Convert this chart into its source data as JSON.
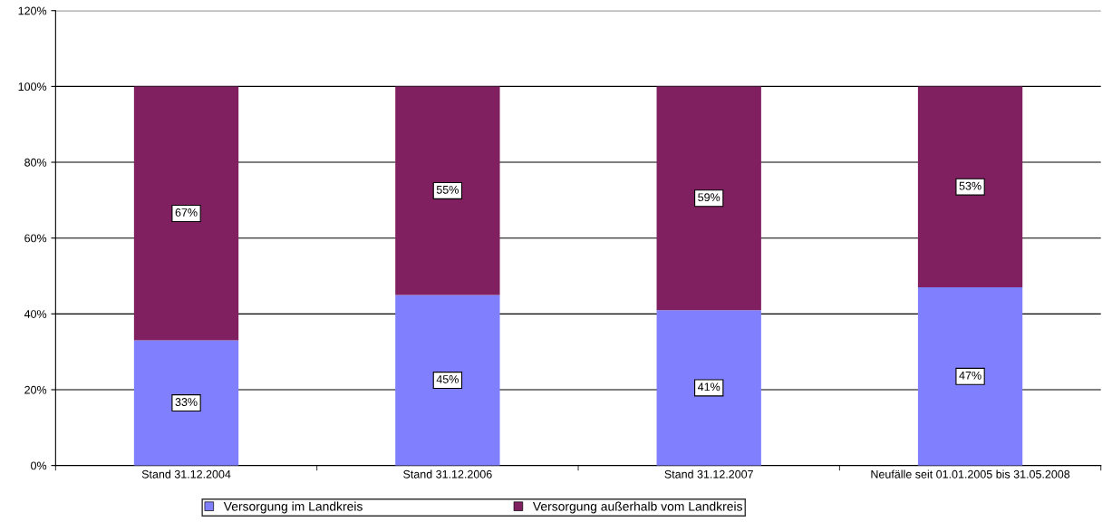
{
  "chart_data": {
    "type": "bar",
    "stacked": true,
    "categories": [
      "Stand 31.12.2004",
      "Stand 31.12.2006",
      "Stand 31.12.2007",
      "Neufälle seit 01.01.2005 bis 31.05.2008"
    ],
    "series": [
      {
        "name": "Versorgung im Landkreis",
        "color": "#8080ff",
        "values": [
          33,
          45,
          41,
          47
        ],
        "value_labels": [
          "33%",
          "45%",
          "41%",
          "47%"
        ]
      },
      {
        "name": "Versorgung außerhalb vom Landkreis",
        "color": "#802060",
        "values": [
          67,
          55,
          59,
          53
        ],
        "value_labels": [
          "67%",
          "55%",
          "59%",
          "53%"
        ]
      }
    ],
    "ylim": [
      0,
      120
    ],
    "yticks": [
      {
        "value": 0,
        "label": "0%"
      },
      {
        "value": 20,
        "label": "20%"
      },
      {
        "value": 40,
        "label": "40%"
      },
      {
        "value": 60,
        "label": "60%"
      },
      {
        "value": 80,
        "label": "80%"
      },
      {
        "value": 100,
        "label": "100%"
      },
      {
        "value": 120,
        "label": "120%"
      }
    ],
    "grid": "y",
    "legend": "bottom"
  }
}
